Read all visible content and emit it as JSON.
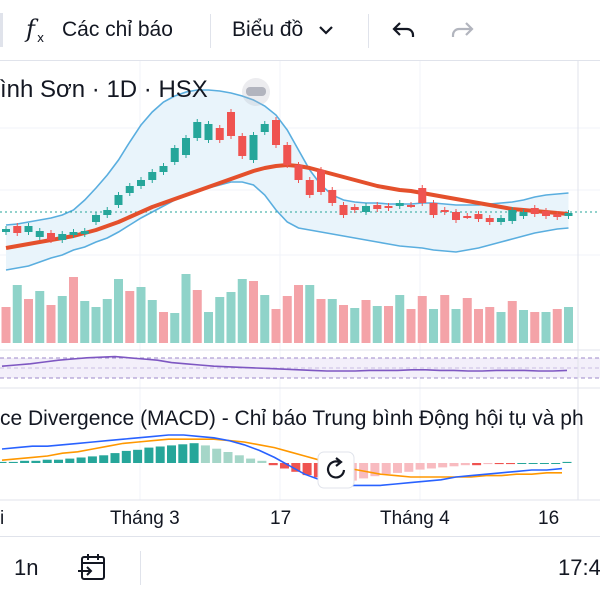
{
  "toolbar": {
    "indicators_label": "Các chỉ báo",
    "chart_type_label": "Biểu đồ",
    "fx_icon": "function-icon",
    "undo_icon": "undo-icon",
    "redo_icon": "redo-icon"
  },
  "symbol": {
    "title": "ình Sơn · 1D · HSX"
  },
  "macd": {
    "title": "ce Divergence (MACD) - Chỉ báo Trung bình Động hội tụ và ph"
  },
  "x_axis": {
    "labels": [
      "i",
      "Tháng 3",
      "17",
      "Tháng 4",
      "16"
    ]
  },
  "bottom": {
    "interval": "1n",
    "time": "17:4"
  },
  "colors": {
    "up": "#26a69a",
    "down": "#ef5350",
    "up_vol": "#8fd3c9",
    "down_vol": "#f4a3a8",
    "ema": "#e4502c",
    "band": "#5aaedf",
    "band_fill": "#e9f4fb",
    "rsi": "#7e57c2",
    "macd": "#2962ff",
    "signal": "#ff9800"
  },
  "chart_data": {
    "type": "candlestick",
    "candles": [
      {
        "o": 232,
        "c": 229
      },
      {
        "o": 226,
        "c": 233
      },
      {
        "o": 232,
        "c": 226
      },
      {
        "o": 237,
        "c": 231
      },
      {
        "o": 233,
        "c": 240
      },
      {
        "o": 240,
        "c": 234
      },
      {
        "o": 235,
        "c": 232
      },
      {
        "o": 234,
        "c": 231
      },
      {
        "o": 222,
        "c": 215
      },
      {
        "o": 215,
        "c": 210
      },
      {
        "o": 205,
        "c": 195
      },
      {
        "o": 193,
        "c": 186
      },
      {
        "o": 186,
        "c": 180
      },
      {
        "o": 180,
        "c": 172
      },
      {
        "o": 172,
        "c": 166
      },
      {
        "o": 162,
        "c": 148
      },
      {
        "o": 155,
        "c": 138
      },
      {
        "o": 138,
        "c": 122
      },
      {
        "o": 140,
        "c": 124
      },
      {
        "o": 128,
        "c": 140
      },
      {
        "o": 112,
        "c": 136
      },
      {
        "o": 136,
        "c": 156
      },
      {
        "o": 160,
        "c": 135
      },
      {
        "o": 132,
        "c": 124
      },
      {
        "o": 120,
        "c": 145
      },
      {
        "o": 145,
        "c": 165
      },
      {
        "o": 165,
        "c": 180
      },
      {
        "o": 180,
        "c": 195
      },
      {
        "o": 170,
        "c": 192
      },
      {
        "o": 190,
        "c": 203
      },
      {
        "o": 205,
        "c": 215
      },
      {
        "o": 207,
        "c": 210
      },
      {
        "o": 212,
        "c": 206
      },
      {
        "o": 205,
        "c": 209
      },
      {
        "o": 206,
        "c": 208
      },
      {
        "o": 206,
        "c": 203
      },
      {
        "o": 205,
        "c": 205
      },
      {
        "o": 188,
        "c": 203
      },
      {
        "o": 203,
        "c": 215
      },
      {
        "o": 210,
        "c": 212
      },
      {
        "o": 212,
        "c": 220
      },
      {
        "o": 216,
        "c": 216
      },
      {
        "o": 214,
        "c": 219
      },
      {
        "o": 218,
        "c": 222
      },
      {
        "o": 222,
        "c": 218
      },
      {
        "o": 221,
        "c": 210
      },
      {
        "o": 216,
        "c": 212
      },
      {
        "o": 208,
        "c": 214
      },
      {
        "o": 211,
        "c": 216
      },
      {
        "o": 214,
        "c": 217
      },
      {
        "o": 216,
        "c": 213
      }
    ],
    "volume": [
      36,
      58,
      44,
      52,
      38,
      47,
      66,
      42,
      36,
      44,
      64,
      52,
      56,
      43,
      31,
      30,
      69,
      53,
      31,
      46,
      51,
      64,
      62,
      48,
      34,
      47,
      58,
      58,
      44,
      44,
      38,
      35,
      43,
      37,
      37,
      48,
      34,
      47,
      34,
      48,
      34,
      45,
      34,
      36,
      31,
      42,
      33,
      31,
      31,
      34,
      36
    ],
    "volume_up": [
      false,
      true,
      false,
      true,
      false,
      true,
      false,
      true,
      true,
      true,
      true,
      false,
      true,
      true,
      false,
      true,
      true,
      false,
      true,
      true,
      true,
      true,
      false,
      true,
      false,
      false,
      false,
      true,
      false,
      true,
      false,
      true,
      false,
      true,
      false,
      true,
      false,
      false,
      true,
      false,
      true,
      false,
      false,
      false,
      true,
      false,
      true,
      false,
      true,
      false,
      true
    ],
    "ema": [
      248,
      246,
      244,
      242,
      240,
      238,
      236,
      233,
      230,
      226,
      222,
      217,
      212,
      207,
      203,
      199,
      195,
      191,
      187,
      183,
      179,
      175,
      171,
      168,
      166,
      165,
      166,
      168,
      171,
      174,
      177,
      180,
      183,
      186,
      188,
      190,
      191,
      193,
      195,
      197,
      199,
      201,
      203,
      205,
      207,
      209,
      210,
      211,
      212,
      213,
      214
    ],
    "upper_band": [
      225,
      224,
      222,
      220,
      218,
      215,
      210,
      200,
      188,
      175,
      160,
      142,
      125,
      112,
      102,
      96,
      92,
      90,
      90,
      91,
      93,
      96,
      100,
      106,
      115,
      130,
      150,
      170,
      185,
      195,
      200,
      202,
      203,
      203,
      204,
      204,
      204,
      203,
      203,
      204,
      205,
      205,
      205,
      204,
      203,
      202,
      200,
      197,
      195,
      194,
      193
    ],
    "lower_band": [
      270,
      268,
      266,
      262,
      258,
      255,
      250,
      247,
      242,
      238,
      232,
      225,
      218,
      212,
      206,
      200,
      196,
      192,
      188,
      185,
      182,
      182,
      185,
      195,
      210,
      222,
      228,
      230,
      232,
      234,
      236,
      238,
      240,
      242,
      244,
      246,
      247,
      248,
      250,
      251,
      252,
      250,
      248,
      245,
      242,
      239,
      236,
      233,
      231,
      229,
      228
    ],
    "rsi": [
      48,
      50,
      52,
      55,
      58,
      60,
      62,
      63,
      64,
      62,
      60,
      58,
      54,
      52,
      50,
      48,
      47,
      46,
      45,
      44,
      43,
      42,
      41,
      40,
      40,
      40,
      41,
      41,
      41,
      42,
      42,
      41,
      41,
      40,
      40,
      41,
      41,
      41,
      40,
      40,
      41
    ],
    "macd_line": [
      10,
      11,
      12,
      12,
      13,
      14,
      15,
      16,
      17,
      18,
      19,
      20,
      20,
      19,
      18,
      16,
      13,
      9,
      4,
      -2,
      -8,
      -12,
      -15,
      -16,
      -16,
      -16,
      -15,
      -14,
      -13,
      -12,
      -10,
      -9,
      -8,
      -7,
      -6,
      -5,
      -5,
      -4
    ],
    "signal_line": [
      2,
      3,
      4,
      5,
      7,
      8,
      10,
      12,
      14,
      15,
      16,
      17,
      17,
      17,
      17,
      16,
      15,
      13,
      11,
      8,
      5,
      2,
      -1,
      -4,
      -6,
      -8,
      -9,
      -10,
      -10,
      -10,
      -10,
      -10,
      -9,
      -9,
      -8,
      -8,
      -7,
      -7
    ],
    "macd_hist": [
      1,
      1,
      2,
      2,
      3,
      3,
      4,
      5,
      6,
      7,
      9,
      11,
      12,
      14,
      15,
      16,
      17,
      18,
      16,
      13,
      10,
      7,
      4,
      2,
      -2,
      -5,
      -8,
      -11,
      -13,
      -16,
      -18,
      -16,
      -14,
      -12,
      -10,
      -9,
      -8,
      -6,
      -5,
      -4,
      -3,
      -2,
      -2,
      -1,
      -1,
      -1,
      0,
      0,
      0,
      0,
      1
    ],
    "current_price_line": 212
  }
}
